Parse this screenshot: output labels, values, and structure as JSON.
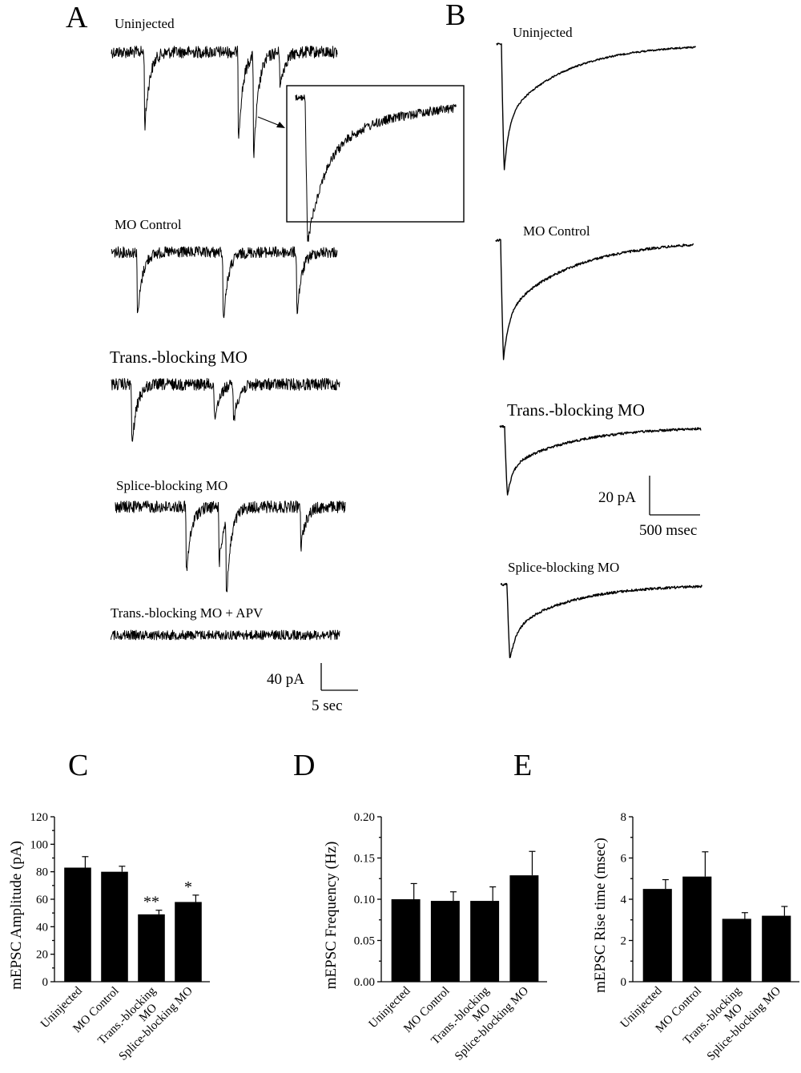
{
  "panels": {
    "A": {
      "letter": "A",
      "traces": [
        {
          "label": "Uninjected"
        },
        {
          "label": "MO Control"
        },
        {
          "label": "Trans.-blocking MO"
        },
        {
          "label": "Splice-blocking MO"
        },
        {
          "label": "Trans.-blocking MO + APV"
        }
      ],
      "scale_bar": {
        "amplitude": "40 pA",
        "time": "5 sec"
      }
    },
    "B": {
      "letter": "B",
      "traces": [
        {
          "label": "Uninjected"
        },
        {
          "label": "MO Control"
        },
        {
          "label": "Trans.-blocking MO"
        },
        {
          "label": "Splice-blocking MO"
        }
      ],
      "scale_bar": {
        "amplitude": "20 pA",
        "time": "500 msec"
      }
    },
    "C": {
      "letter": "C"
    },
    "D": {
      "letter": "D"
    },
    "E": {
      "letter": "E"
    }
  },
  "chart_data": [
    {
      "id": "C",
      "type": "bar",
      "categories": [
        "Uninjected",
        "MO Control",
        "Trans.-blocking MO",
        "Splice-blocking MO"
      ],
      "values": [
        83,
        80,
        49,
        58
      ],
      "errors": [
        8,
        4,
        3,
        5
      ],
      "significance": [
        "",
        "",
        "**",
        "*"
      ],
      "ylabel": "mEPSC Amplitude (pA)",
      "ylim": [
        0,
        120
      ],
      "yticks": [
        "0",
        "20",
        "40",
        "60",
        "80",
        "100",
        "120"
      ]
    },
    {
      "id": "D",
      "type": "bar",
      "categories": [
        "Uninjected",
        "MO Control",
        "Trans.-blocking MO",
        "Splice-blocking MO"
      ],
      "values": [
        0.1,
        0.098,
        0.098,
        0.129
      ],
      "errors": [
        0.019,
        0.011,
        0.017,
        0.029
      ],
      "significance": [
        "",
        "",
        "",
        ""
      ],
      "ylabel": "mEPSC Frequency (Hz)",
      "ylim": [
        0,
        0.2
      ],
      "yticks": [
        "0.00",
        "0.05",
        "0.10",
        "0.15",
        "0.20"
      ]
    },
    {
      "id": "E",
      "type": "bar",
      "categories": [
        "Uninjected",
        "MO Control",
        "Trans.-blocking MO",
        "Splice-blocking MO"
      ],
      "values": [
        4.5,
        5.1,
        3.05,
        3.2
      ],
      "errors": [
        0.45,
        1.2,
        0.3,
        0.45
      ],
      "significance": [
        "",
        "",
        "",
        ""
      ],
      "ylabel": "mEPSC Rise time (msec)",
      "ylim": [
        0,
        8
      ],
      "yticks": [
        "0",
        "2",
        "4",
        "6",
        "8"
      ]
    }
  ]
}
